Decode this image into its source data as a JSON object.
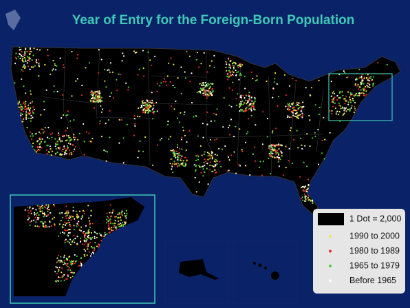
{
  "title": "Year of Entry for the Foreign-Born Population",
  "legend": {
    "scale": "1 Dot = 2,000",
    "items": [
      {
        "label": "1990 to 2000",
        "color": "#f2e84a"
      },
      {
        "label": "1980 to 1989",
        "color": "#e8302a"
      },
      {
        "label": "1965 to 1979",
        "color": "#4fd13a"
      },
      {
        "label": "Before 1965",
        "color": "#ffffff"
      }
    ]
  }
}
